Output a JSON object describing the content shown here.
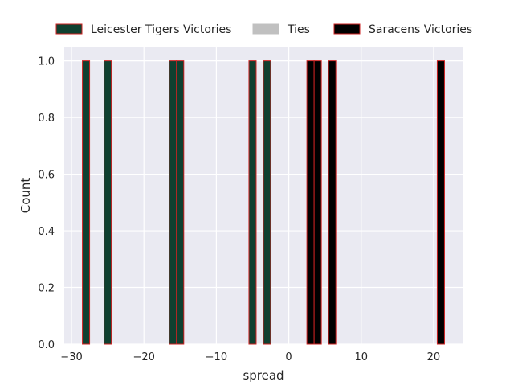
{
  "chart_data": {
    "type": "bar",
    "xlabel": "spread",
    "ylabel": "Count",
    "xlim": [
      -31,
      24
    ],
    "ylim": [
      0,
      1.05
    ],
    "grid": true,
    "legend_position": "top",
    "x_ticks": [
      -30,
      -20,
      -10,
      0,
      10,
      20
    ],
    "x_tick_labels": [
      "−30",
      "−20",
      "−10",
      "0",
      "10",
      "20"
    ],
    "y_ticks": [
      0.0,
      0.2,
      0.4,
      0.6,
      0.8,
      1.0
    ],
    "y_tick_labels": [
      "0.0",
      "0.2",
      "0.4",
      "0.6",
      "0.8",
      "1.0"
    ],
    "bin_width": 1,
    "series": [
      {
        "name": "Leicester Tigers Victories",
        "color": "#0f4030",
        "edgecolor": "#cc2222",
        "x": [
          -28,
          -25,
          -16,
          -15,
          -5,
          -3
        ],
        "values": [
          1,
          1,
          1,
          1,
          1,
          1
        ]
      },
      {
        "name": "Ties",
        "color": "#c0c0c0",
        "edgecolor": "#c0c0c0",
        "x": [],
        "values": []
      },
      {
        "name": "Saracens Victories",
        "color": "#000000",
        "edgecolor": "#cc2222",
        "x": [
          3,
          4,
          6,
          21
        ],
        "values": [
          1,
          1,
          1,
          1
        ]
      }
    ]
  },
  "colors": {
    "plot_background": "#eaeaf2",
    "grid": "#ffffff"
  }
}
